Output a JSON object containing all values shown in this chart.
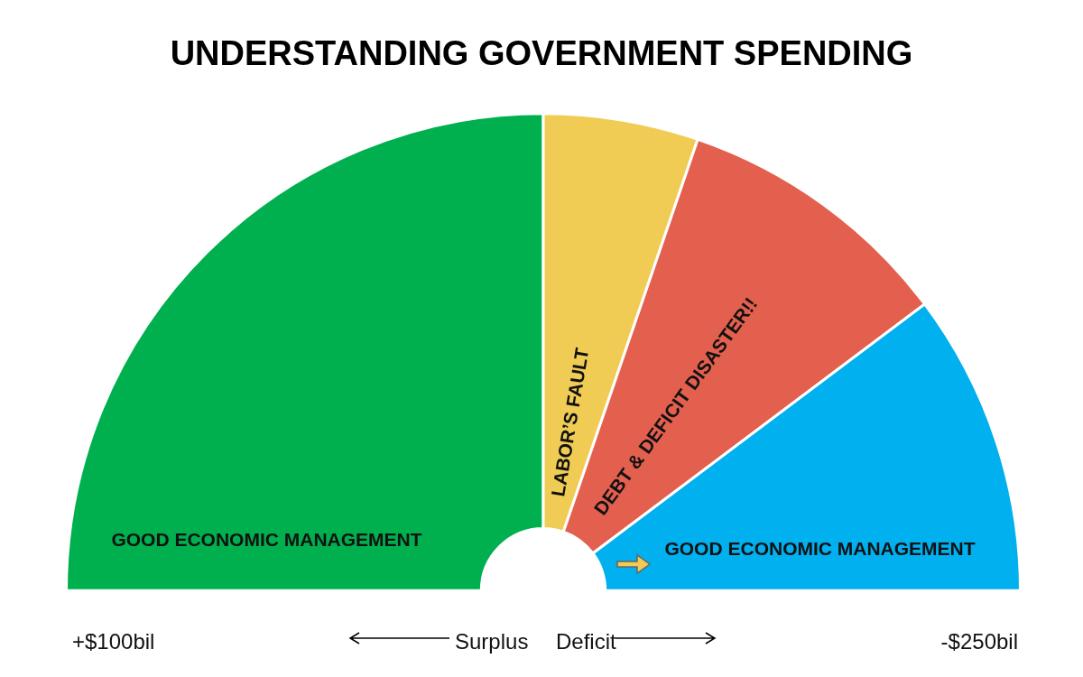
{
  "chart_data": {
    "type": "donut",
    "title": "UNDERSTANDING GOVERNMENT SPENDING",
    "categories": [
      "GOOD ECONOMIC MANAGEMENT",
      "LABOR’S FAULT",
      "DEBT & DEFICIT DISASTER!!",
      "GOOD ECONOMIC MANAGEMENT"
    ],
    "values": [
      50,
      10.5,
      19,
      20.5
    ],
    "colors": [
      "#00b04f",
      "#f0cc55",
      "#e35f4e",
      "#00b0ef"
    ],
    "annotations": [
      "+$100bil",
      "Surplus",
      "Deficit",
      "-$250bil"
    ],
    "legend": false
  }
}
